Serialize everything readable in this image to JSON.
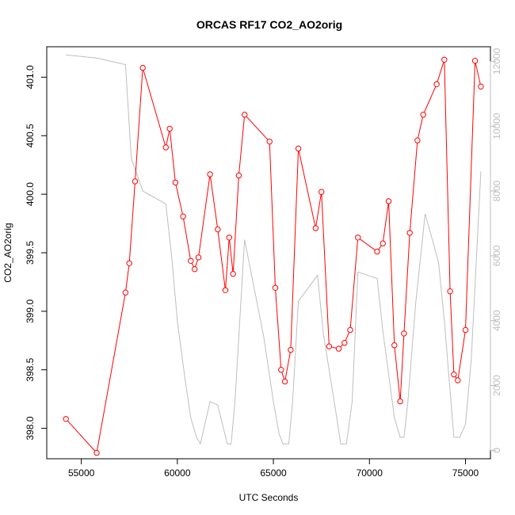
{
  "chart_data": {
    "type": "line",
    "title": "ORCAS RF17 CO2_AO2orig",
    "xlabel": "UTC Seconds",
    "ylabel": "CO2_AO2orig",
    "xlim": [
      53200,
      76300
    ],
    "ylim": [
      397.74,
      401.26
    ],
    "y2lim": [
      -260,
      12450
    ],
    "x_ticks": [
      55000,
      60000,
      65000,
      70000,
      75000
    ],
    "x_tick_labels": [
      "55000",
      "60000",
      "65000",
      "70000",
      "75000"
    ],
    "y_ticks": [
      398.0,
      398.5,
      399.0,
      399.5,
      400.0,
      400.5,
      401.0
    ],
    "y_tick_labels": [
      "398.0",
      "398.5",
      "399.0",
      "399.5",
      "400.0",
      "400.5",
      "401.0"
    ],
    "y2_ticks": [
      0,
      2000,
      4000,
      6000,
      8000,
      10000,
      12000
    ],
    "y2_tick_labels": [
      "0",
      "2000",
      "4000",
      "6000",
      "8000",
      "10000",
      "12000"
    ],
    "colors": {
      "primary": "#ff0000",
      "secondary": "#bebebe",
      "axis": "#000000",
      "axis2": "#bebebe"
    },
    "series": [
      {
        "axis": "left",
        "marker": "open-circle",
        "points": [
          [
            54200,
            398.08
          ],
          [
            55800,
            397.79
          ],
          [
            57300,
            399.16
          ],
          [
            57500,
            399.41
          ],
          [
            57800,
            400.11
          ],
          [
            58200,
            401.08
          ],
          [
            59400,
            400.4
          ],
          [
            59600,
            400.56
          ],
          [
            59900,
            400.1
          ],
          [
            60300,
            399.81
          ],
          [
            60700,
            399.43
          ],
          [
            60900,
            399.36
          ],
          [
            61100,
            399.46
          ],
          [
            61700,
            400.17
          ],
          [
            62100,
            399.7
          ],
          [
            62500,
            399.18
          ],
          [
            62700,
            399.63
          ],
          [
            62900,
            399.32
          ],
          [
            63200,
            400.16
          ],
          [
            63500,
            400.68
          ],
          [
            64800,
            400.45
          ],
          [
            65100,
            399.2
          ],
          [
            65400,
            398.5
          ],
          [
            65600,
            398.4
          ],
          [
            65900,
            398.67
          ],
          [
            66300,
            400.39
          ],
          [
            67200,
            399.71
          ],
          [
            67500,
            400.02
          ],
          [
            67900,
            398.7
          ],
          [
            68400,
            398.68
          ],
          [
            68700,
            398.73
          ],
          [
            69000,
            398.84
          ],
          [
            69400,
            399.63
          ],
          [
            70400,
            399.51
          ],
          [
            70700,
            399.58
          ],
          [
            71000,
            399.94
          ],
          [
            71300,
            398.71
          ],
          [
            71600,
            398.23
          ],
          [
            71800,
            398.81
          ],
          [
            72100,
            399.67
          ],
          [
            72500,
            400.46
          ],
          [
            72800,
            400.68
          ],
          [
            73500,
            400.94
          ],
          [
            73900,
            401.15
          ],
          [
            74200,
            399.17
          ],
          [
            74400,
            398.46
          ],
          [
            74600,
            398.41
          ],
          [
            75000,
            398.84
          ],
          [
            75500,
            401.14
          ],
          [
            75800,
            400.92
          ]
        ]
      },
      {
        "axis": "right",
        "marker": "none",
        "points": [
          [
            54200,
            12200
          ],
          [
            55800,
            12100
          ],
          [
            57300,
            11900
          ],
          [
            57600,
            9000
          ],
          [
            58200,
            8000
          ],
          [
            59400,
            7600
          ],
          [
            59700,
            6000
          ],
          [
            60000,
            4000
          ],
          [
            60400,
            2200
          ],
          [
            60700,
            1000
          ],
          [
            61000,
            400
          ],
          [
            61200,
            200
          ],
          [
            61700,
            1500
          ],
          [
            62100,
            1400
          ],
          [
            62600,
            200
          ],
          [
            62800,
            200
          ],
          [
            63000,
            1500
          ],
          [
            63200,
            3500
          ],
          [
            63500,
            6500
          ],
          [
            64500,
            3500
          ],
          [
            65000,
            1500
          ],
          [
            65300,
            500
          ],
          [
            65500,
            200
          ],
          [
            65800,
            200
          ],
          [
            66000,
            1500
          ],
          [
            66300,
            4600
          ],
          [
            67300,
            5400
          ],
          [
            67600,
            3600
          ],
          [
            68300,
            1000
          ],
          [
            68500,
            200
          ],
          [
            68800,
            200
          ],
          [
            69100,
            1500
          ],
          [
            69400,
            5500
          ],
          [
            70400,
            5300
          ],
          [
            70700,
            3700
          ],
          [
            71300,
            1000
          ],
          [
            71600,
            400
          ],
          [
            71800,
            400
          ],
          [
            72000,
            1500
          ],
          [
            72400,
            4500
          ],
          [
            72900,
            7300
          ],
          [
            73600,
            5800
          ],
          [
            73900,
            4000
          ],
          [
            74400,
            400
          ],
          [
            74700,
            400
          ],
          [
            75000,
            800
          ],
          [
            75300,
            2800
          ],
          [
            75800,
            8600
          ]
        ]
      }
    ]
  }
}
